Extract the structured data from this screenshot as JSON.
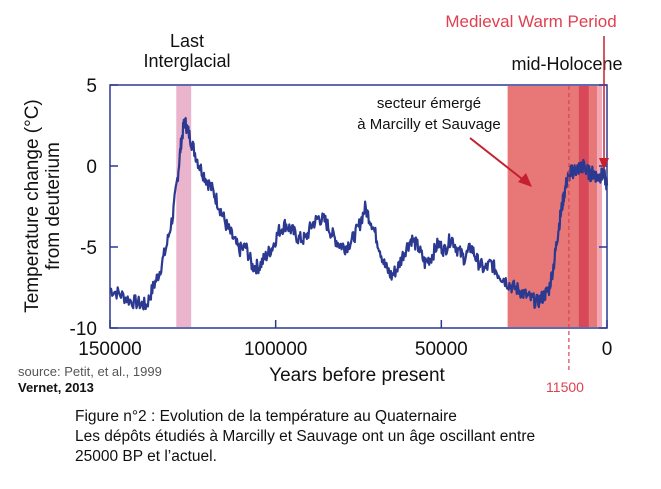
{
  "chart_data": {
    "type": "line",
    "title": "",
    "xlabel": "Years before present",
    "ylabel": "Temperature change (°C) from deuterium",
    "ylabel_lines": [
      "Temperature change (°C)",
      "from deuterium"
    ],
    "xlim": [
      150000,
      0
    ],
    "ylim": [
      -10,
      5
    ],
    "x_ticks": [
      150000,
      100000,
      50000,
      0
    ],
    "y_ticks": [
      5,
      0,
      -5,
      -10
    ],
    "grid": false,
    "series": [
      {
        "color": "#2b3990",
        "points": [
          [
            150000,
            -7.6
          ],
          [
            147000,
            -7.9
          ],
          [
            144000,
            -8.3
          ],
          [
            141000,
            -8.5
          ],
          [
            139000,
            -8.6
          ],
          [
            137000,
            -7.5
          ],
          [
            135000,
            -6.5
          ],
          [
            133000,
            -5.0
          ],
          [
            131000,
            -3.0
          ],
          [
            129500,
            -0.5
          ],
          [
            128500,
            1.5
          ],
          [
            127500,
            2.8
          ],
          [
            126500,
            2.2
          ],
          [
            125000,
            1.2
          ],
          [
            123000,
            0.0
          ],
          [
            121000,
            -0.8
          ],
          [
            119000,
            -1.5
          ],
          [
            117000,
            -2.5
          ],
          [
            115000,
            -3.6
          ],
          [
            113000,
            -4.4
          ],
          [
            111000,
            -5.2
          ],
          [
            109000,
            -5.0
          ],
          [
            107000,
            -6.2
          ],
          [
            105000,
            -6.2
          ],
          [
            103000,
            -5.6
          ],
          [
            101000,
            -5.0
          ],
          [
            99000,
            -4.0
          ],
          [
            97000,
            -3.6
          ],
          [
            95000,
            -4.0
          ],
          [
            93000,
            -4.5
          ],
          [
            91000,
            -4.5
          ],
          [
            89000,
            -3.6
          ],
          [
            87000,
            -3.2
          ],
          [
            85000,
            -3.4
          ],
          [
            83000,
            -4.2
          ],
          [
            81000,
            -4.8
          ],
          [
            79000,
            -5.0
          ],
          [
            77000,
            -4.6
          ],
          [
            75000,
            -3.8
          ],
          [
            73000,
            -2.6
          ],
          [
            71000,
            -3.5
          ],
          [
            69000,
            -4.8
          ],
          [
            67000,
            -6.2
          ],
          [
            65000,
            -6.8
          ],
          [
            63000,
            -6.2
          ],
          [
            61000,
            -5.2
          ],
          [
            59000,
            -4.5
          ],
          [
            57000,
            -5.0
          ],
          [
            55000,
            -6.0
          ],
          [
            53000,
            -5.6
          ],
          [
            51000,
            -4.8
          ],
          [
            49000,
            -5.2
          ],
          [
            47000,
            -4.4
          ],
          [
            45000,
            -5.2
          ],
          [
            43000,
            -5.7
          ],
          [
            41000,
            -5.0
          ],
          [
            39000,
            -5.9
          ],
          [
            37000,
            -6.4
          ],
          [
            35000,
            -6.0
          ],
          [
            33000,
            -6.6
          ],
          [
            31000,
            -7.0
          ],
          [
            29000,
            -7.4
          ],
          [
            27000,
            -7.6
          ],
          [
            25000,
            -7.9
          ],
          [
            23000,
            -8.2
          ],
          [
            21000,
            -8.4
          ],
          [
            19000,
            -8.0
          ],
          [
            17500,
            -7.6
          ],
          [
            16000,
            -6.0
          ],
          [
            15000,
            -4.4
          ],
          [
            14000,
            -3.0
          ],
          [
            13000,
            -1.8
          ],
          [
            12000,
            -0.8
          ],
          [
            11000,
            -0.4
          ],
          [
            10000,
            -0.3
          ],
          [
            9000,
            -0.2
          ],
          [
            8000,
            -0.1
          ],
          [
            7000,
            0.0
          ],
          [
            6000,
            -0.3
          ],
          [
            5000,
            -0.5
          ],
          [
            4000,
            -0.4
          ],
          [
            3000,
            -0.7
          ],
          [
            2000,
            -0.6
          ],
          [
            1000,
            -0.5
          ],
          [
            0,
            -1.2
          ]
        ]
      }
    ],
    "annotations": [
      {
        "text": "Last",
        "x": 128000
      },
      {
        "text": "Interglacial",
        "x": 128000
      },
      {
        "text": "Medieval Warm Period",
        "color": "#e04050"
      },
      {
        "text": "mid-Holocene"
      },
      {
        "text": "secteur  émergé"
      },
      {
        "text": "à Marcilly et Sauvage"
      },
      {
        "text": "11500",
        "color": "#e04050",
        "x": 11500
      }
    ],
    "bands": [
      {
        "name": "last-interglacial",
        "x0": 130000,
        "x1": 125500,
        "color": "#eab4cc"
      },
      {
        "name": "secteur-emerge",
        "x0": 30000,
        "x1": 3000,
        "color": "#e87878"
      },
      {
        "name": "mid-holocene",
        "x0": 8500,
        "x1": 5500,
        "color": "#d84858"
      },
      {
        "name": "medieval-warm",
        "x0": 3000,
        "x1": 1500,
        "color": "#f2a8b4"
      }
    ],
    "source": "source: Petit, et al., 1999",
    "credit": "Vernet, 2013"
  },
  "caption": {
    "line1": "Figure n°2 : Evolution de la température au Quaternaire",
    "line2": "Les dépôts étudiés à Marcilly et Sauvage ont un âge oscillant entre",
    "line3": "25000 BP et l’actuel."
  }
}
